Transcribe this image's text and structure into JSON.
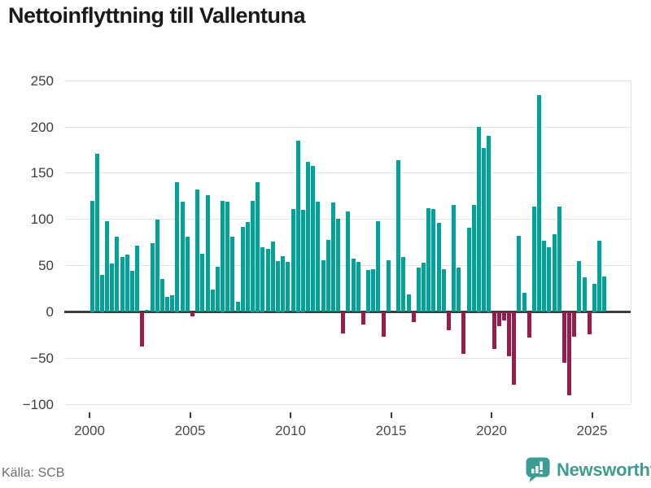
{
  "title": "Nettoinflyttning till Vallentuna",
  "source": "Källa: SCB",
  "branding": {
    "name": "Newsworthy",
    "icon": "newsworthy-speech-bubble-bars-icon"
  },
  "colors": {
    "positive_bar": "#00a29a",
    "negative_bar": "#9b1b4b",
    "gridline": "#e3e3e3",
    "axis_line": "#3d3d3d",
    "title_text": "#1a1a1a",
    "tick_label": "#4a4a4a",
    "source_text": "#6e6e78",
    "brand_teal": "#3d9c94"
  },
  "chart_data": {
    "type": "bar",
    "title": "Nettoinflyttning till Vallentuna",
    "xlabel": "",
    "ylabel": "",
    "start_year": 2000,
    "start_quarter": 1,
    "frequency": "quarterly",
    "x_tick_years": [
      2000,
      2005,
      2010,
      2015,
      2020,
      2025
    ],
    "y_ticks": [
      250,
      200,
      150,
      100,
      50,
      0,
      -50,
      -100
    ],
    "ylim": [
      -115,
      260
    ],
    "grid": true,
    "legend": "none",
    "values": [
      120,
      171,
      40,
      98,
      52,
      81,
      59,
      62,
      44,
      72,
      -37,
      2,
      74,
      100,
      36,
      16,
      18,
      140,
      119,
      81,
      -5,
      132,
      63,
      126,
      24,
      49,
      120,
      119,
      81,
      11,
      92,
      97,
      120,
      140,
      70,
      68,
      76,
      55,
      60,
      54,
      111,
      185,
      110,
      162,
      158,
      119,
      56,
      78,
      118,
      101,
      -23,
      109,
      58,
      54,
      -14,
      45,
      46,
      98,
      -27,
      56,
      0,
      164,
      59,
      19,
      -11,
      48,
      53,
      112,
      111,
      96,
      46,
      -20,
      116,
      48,
      -45,
      91,
      116,
      200,
      177,
      190,
      -40,
      -15,
      -9,
      -48,
      -79,
      82,
      21,
      -28,
      114,
      234,
      77,
      70,
      84,
      114,
      -55,
      -90,
      -27,
      55,
      37,
      -24,
      30,
      77,
      38
    ]
  }
}
